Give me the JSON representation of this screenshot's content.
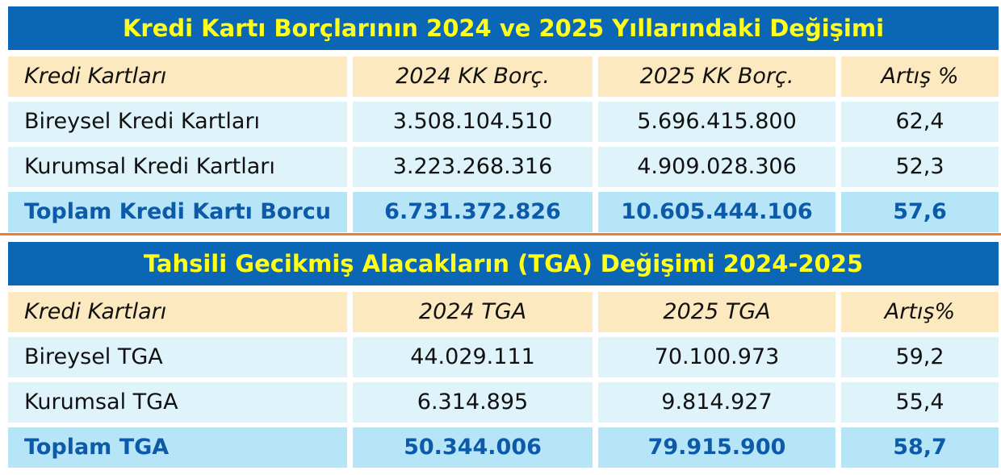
{
  "tables": [
    {
      "title": "Kredi Kartı Borçlarının 2024 ve 2025 Yıllarındaki Değişimi",
      "header": [
        "Kredi Kartları",
        "2024 KK Borç.",
        "2025 KK Borç.",
        "Artış %"
      ],
      "rows": [
        [
          "Bireysel Kredi Kartları",
          "3.508.104.510",
          "5.696.415.800",
          "62,4"
        ],
        [
          "Kurumsal Kredi Kartları",
          "3.223.268.316",
          "4.909.028.306",
          "52,3"
        ]
      ],
      "total": [
        "Toplam Kredi Kartı Borcu",
        "6.731.372.826",
        "10.605.444.106",
        "57,6"
      ]
    },
    {
      "title": "Tahsili Gecikmiş Alacakların (TGA) Değişimi 2024-2025",
      "header": [
        "Kredi Kartları",
        "2024 TGA",
        "2025 TGA",
        "Artış%"
      ],
      "rows": [
        [
          "Bireysel TGA",
          "44.029.111",
          "70.100.973",
          "59,2"
        ],
        [
          "Kurumsal TGA",
          "6.314.895",
          "9.814.927",
          "55,4"
        ]
      ],
      "total": [
        "Toplam TGA",
        "50.344.006",
        "79.915.900",
        "58,7"
      ]
    }
  ]
}
